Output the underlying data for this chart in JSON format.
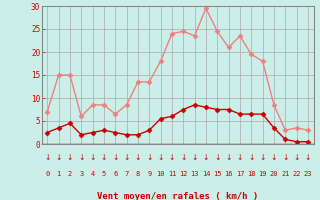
{
  "hours": [
    0,
    1,
    2,
    3,
    4,
    5,
    6,
    7,
    8,
    9,
    10,
    11,
    12,
    13,
    14,
    15,
    16,
    17,
    18,
    19,
    20,
    21,
    22,
    23
  ],
  "rafales": [
    7,
    15,
    15,
    6,
    8.5,
    8.5,
    6.5,
    8.5,
    13.5,
    13.5,
    18,
    24,
    24.5,
    23.5,
    29.5,
    24.5,
    21,
    23.5,
    19.5,
    18,
    8.5,
    3,
    3.5,
    3
  ],
  "moyen": [
    2.5,
    3.5,
    4.5,
    2,
    2.5,
    3,
    2.5,
    2,
    2,
    3,
    5.5,
    6,
    7.5,
    8.5,
    8,
    7.5,
    7.5,
    6.5,
    6.5,
    6.5,
    3.5,
    1,
    0.5,
    0.5
  ],
  "rafales_color": "#f08080",
  "moyen_color": "#cc0000",
  "bg_color": "#cceee8",
  "grid_color": "#aaaaaa",
  "axis_color": "#cc0000",
  "spine_color": "#888888",
  "xlabel": "Vent moyen/en rafales ( km/h )",
  "ylim": [
    0,
    30
  ],
  "yticks": [
    0,
    5,
    10,
    15,
    20,
    25,
    30
  ]
}
